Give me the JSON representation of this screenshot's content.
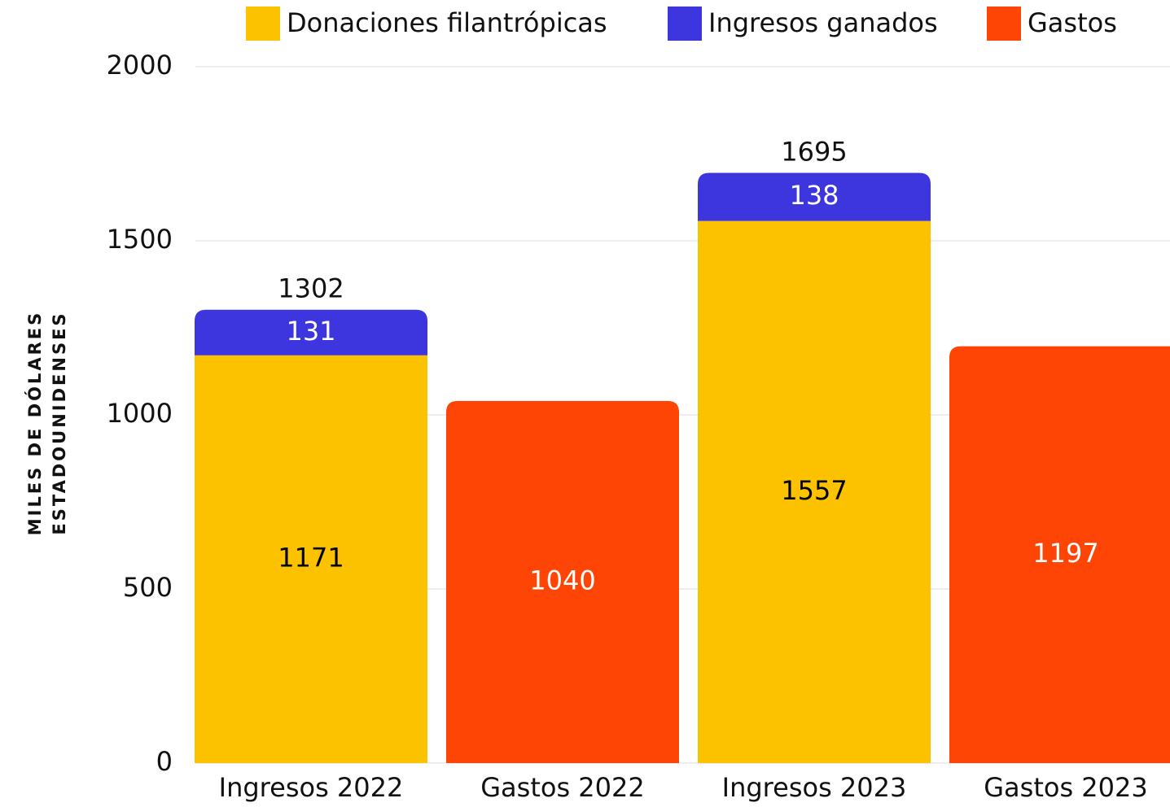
{
  "chart_data": {
    "type": "stacked_bar",
    "y_label": [
      "MILES DE DÓLARES",
      "ESTADOUNIDENSES"
    ],
    "categories": [
      "Ingresos 2022",
      "Gastos 2022",
      "Ingresos 2023",
      "Gastos 2023"
    ],
    "series": [
      {
        "name": "Donaciones filantrópicas",
        "color": "#fcc200",
        "label_color": "#000000",
        "values": [
          1171,
          null,
          1557,
          null
        ]
      },
      {
        "name": "Ingresos ganados",
        "color": "#3d35de",
        "label_color": "#ffffff",
        "values": [
          131,
          null,
          138,
          null
        ]
      },
      {
        "name": "Gastos",
        "color": "#ff4505",
        "label_color": "#ffffff",
        "values": [
          null,
          1040,
          null,
          1197
        ]
      }
    ],
    "totals": [
      1302,
      null,
      1695,
      null
    ],
    "ylim": [
      0,
      2000
    ],
    "yticks": [
      0,
      500,
      1000,
      1500,
      2000
    ],
    "grid": true,
    "legend": "top"
  }
}
